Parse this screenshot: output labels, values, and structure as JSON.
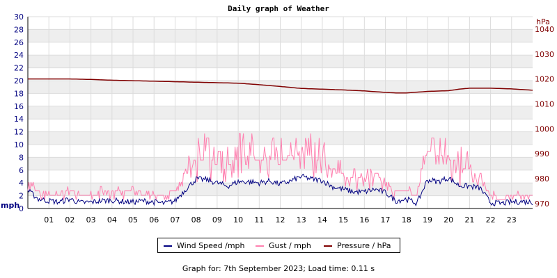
{
  "chart_data": {
    "type": "line",
    "title": "Daily graph of Weather",
    "left_axis": {
      "unit_label": "mph",
      "ylim": [
        0,
        30
      ],
      "ticks": [
        0,
        2,
        4,
        6,
        8,
        10,
        12,
        14,
        16,
        18,
        20,
        22,
        24,
        26,
        28,
        30
      ]
    },
    "right_axis": {
      "unit_label": "hPa",
      "ylim": [
        968,
        1045
      ],
      "ticks": [
        970,
        980,
        990,
        1000,
        1010,
        1020,
        1030,
        1040
      ]
    },
    "x_axis": {
      "xlim": [
        0,
        24
      ],
      "tick_labels": [
        "01",
        "02",
        "03",
        "04",
        "05",
        "06",
        "07",
        "08",
        "09",
        "10",
        "11",
        "12",
        "13",
        "14",
        "15",
        "16",
        "17",
        "18",
        "19",
        "20",
        "21",
        "22",
        "23"
      ]
    },
    "grid": true,
    "legend_position": "bottom-center",
    "series": [
      {
        "name": "Wind Speed /mph",
        "color": "#000080",
        "axis": "left",
        "x": [
          0,
          0.5,
          1,
          1.5,
          2,
          2.5,
          3,
          3.5,
          4,
          4.5,
          5,
          5.5,
          6,
          6.5,
          7,
          7.5,
          8,
          8.5,
          9,
          9.5,
          10,
          10.5,
          11,
          11.5,
          12,
          12.5,
          13,
          13.5,
          14,
          14.5,
          15,
          15.5,
          16,
          16.5,
          17,
          17.5,
          18,
          18.5,
          19,
          19.5,
          20,
          20.5,
          21,
          21.5,
          22,
          22.5,
          23,
          23.5,
          24
        ],
        "values": [
          2.8,
          1.5,
          1.2,
          1.0,
          1.5,
          0.9,
          1.0,
          1.2,
          1.3,
          1.1,
          1.0,
          1.2,
          1.0,
          0.8,
          1.2,
          3.0,
          4.6,
          4.5,
          4.0,
          3.5,
          4.2,
          4.2,
          4.0,
          4.3,
          3.8,
          4.3,
          5.0,
          4.6,
          4.4,
          3.4,
          3.0,
          2.6,
          2.6,
          3.0,
          2.5,
          1.2,
          1.5,
          0.8,
          4.5,
          4.2,
          4.8,
          3.6,
          3.5,
          3.2,
          0.9,
          0.8,
          1.0,
          1.1,
          1.0
        ]
      },
      {
        "name": "Gust / mph",
        "color": "#ff80b0",
        "axis": "left",
        "x": [
          0,
          0.5,
          1,
          1.5,
          2,
          2.5,
          3,
          3.5,
          4,
          4.5,
          5,
          5.5,
          6,
          6.5,
          7,
          7.5,
          8,
          8.5,
          9,
          9.5,
          10,
          10.5,
          11,
          11.5,
          12,
          12.5,
          13,
          13.5,
          14,
          14.5,
          15,
          15.5,
          16,
          16.5,
          17,
          17.5,
          18,
          18.5,
          19,
          19.5,
          20,
          20.5,
          21,
          21.5,
          22,
          22.5,
          23,
          23.5,
          24
        ],
        "values": [
          4.5,
          2.5,
          2.0,
          2.3,
          3.0,
          1.8,
          2.0,
          2.6,
          2.8,
          2.5,
          2.7,
          2.3,
          2.3,
          2.0,
          2.7,
          5.5,
          7.5,
          8.0,
          7.0,
          6.5,
          8.0,
          8.5,
          7.5,
          8.0,
          7.0,
          8.5,
          9.0,
          8.0,
          7.5,
          6.0,
          5.5,
          4.5,
          4.5,
          5.5,
          4.0,
          2.5,
          2.8,
          2.0,
          9.0,
          8.5,
          8.0,
          6.5,
          6.0,
          4.5,
          2.0,
          1.5,
          2.0,
          2.0,
          2.0
        ],
        "peaks": [
          6,
          10,
          10.5,
          11.5,
          11,
          9,
          10.5,
          9.5
        ]
      },
      {
        "name": "Pressure / hPa",
        "color": "#800000",
        "axis": "right",
        "x": [
          0,
          1,
          2,
          3,
          4,
          5,
          6,
          7,
          8,
          9,
          10,
          11,
          12,
          13,
          14,
          15,
          16,
          17,
          17.5,
          18,
          19,
          20,
          20.5,
          21,
          22,
          23,
          24
        ],
        "values": [
          1020,
          1020,
          1020,
          1019.8,
          1019.5,
          1019.3,
          1019.1,
          1018.9,
          1018.7,
          1018.5,
          1018.3,
          1017.7,
          1017,
          1016.2,
          1015.9,
          1015.6,
          1015.2,
          1014.6,
          1014.4,
          1014.4,
          1015,
          1015.3,
          1015.9,
          1016.3,
          1016.3,
          1016,
          1015.5
        ]
      }
    ]
  },
  "legend": {
    "wind": "Wind Speed /mph",
    "gust": "Gust / mph",
    "pressure": "Pressure / hPa"
  },
  "footer": "Graph for: 7th September 2023; Load time: 0.11 s"
}
